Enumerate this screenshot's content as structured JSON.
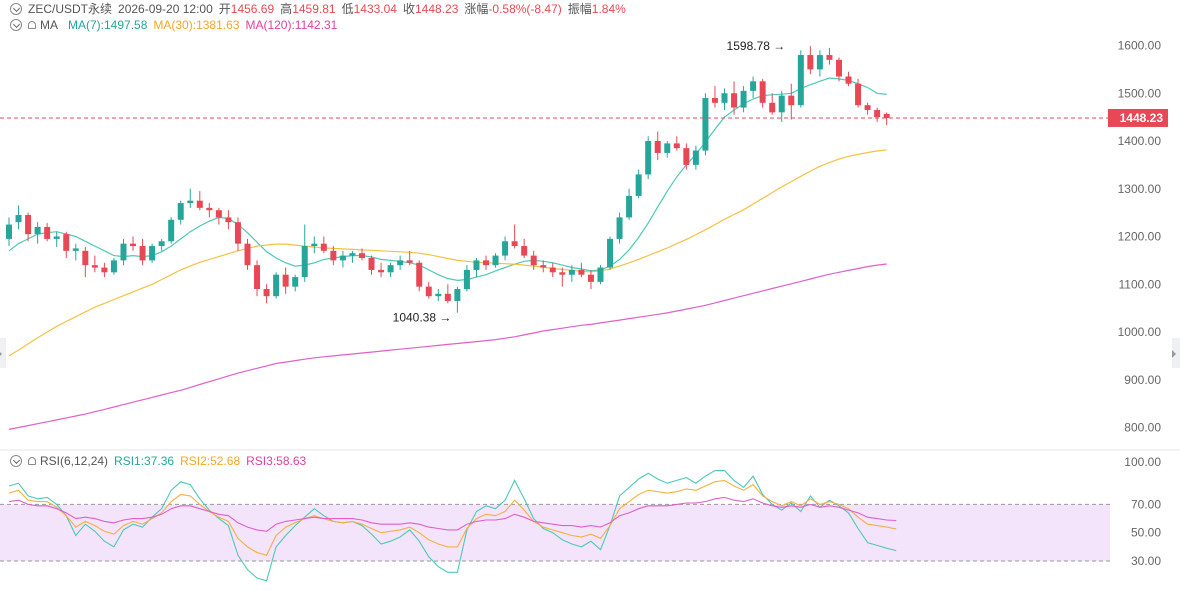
{
  "header": {
    "symbol": "ZEC/USDT永续",
    "time": "2026-09-20 12:00",
    "open_label": "开",
    "open": "1456.69",
    "high_label": "高",
    "high": "1459.81",
    "low_label": "低",
    "low": "1433.04",
    "close_label": "收",
    "close": "1448.23",
    "change_label": "涨幅",
    "change": "-0.58%(-8.47)",
    "amplitude_label": "振幅",
    "amplitude": "1.84%"
  },
  "ma_legend": {
    "name": "MA",
    "ma7": "MA(7):1497.58",
    "ma30": "MA(30):1381.63",
    "ma120": "MA(120):1142.31"
  },
  "rsi_legend": {
    "name": "RSI(6,12,24)",
    "rsi1": "RSI1:37.36",
    "rsi2": "RSI2:52.68",
    "rsi3": "RSI3:58.63"
  },
  "colors": {
    "up": "#26a69a",
    "down": "#e84855",
    "ma7": "#4cc9b8",
    "ma30": "#f5c142",
    "ma120": "#e060c8",
    "rsi1": "#4cc9b8",
    "rsi2": "#f5b042",
    "rsi3": "#e060c8",
    "rsi_band": "#f3e3fb",
    "price_tag": "#e84855"
  },
  "chart_data": [
    {
      "type": "candlestick",
      "ylim": [
        780,
        1650
      ],
      "y_ticks": [
        "1600.00",
        "1500.00",
        "1400.00",
        "1300.00",
        "1200.00",
        "1100.00",
        "1000.00",
        "900.00",
        "800.00"
      ],
      "y_tick_values": [
        1600,
        1500,
        1400,
        1300,
        1200,
        1100,
        1000,
        900,
        800
      ],
      "last_price": 1448.23,
      "last_price_label": "1448.23",
      "annotations": [
        {
          "label": "1598.78",
          "value": 1598.78,
          "index": 82,
          "side": "left"
        },
        {
          "label": "1040.38",
          "value": 1040.38,
          "index": 47,
          "side": "left"
        }
      ],
      "candles": [
        [
          1195,
          1240,
          1180,
          1225
        ],
        [
          1230,
          1265,
          1215,
          1245
        ],
        [
          1245,
          1250,
          1190,
          1205
        ],
        [
          1205,
          1230,
          1185,
          1220
        ],
        [
          1220,
          1228,
          1190,
          1195
        ],
        [
          1195,
          1210,
          1178,
          1200
        ],
        [
          1205,
          1210,
          1155,
          1170
        ],
        [
          1170,
          1185,
          1150,
          1175
        ],
        [
          1170,
          1178,
          1115,
          1140
        ],
        [
          1140,
          1160,
          1125,
          1135
        ],
        [
          1135,
          1145,
          1115,
          1125
        ],
        [
          1125,
          1155,
          1120,
          1150
        ],
        [
          1150,
          1195,
          1140,
          1185
        ],
        [
          1185,
          1200,
          1170,
          1180
        ],
        [
          1180,
          1195,
          1140,
          1150
        ],
        [
          1150,
          1185,
          1145,
          1180
        ],
        [
          1180,
          1195,
          1170,
          1190
        ],
        [
          1190,
          1240,
          1185,
          1235
        ],
        [
          1235,
          1275,
          1225,
          1270
        ],
        [
          1270,
          1300,
          1260,
          1275
        ],
        [
          1275,
          1295,
          1255,
          1260
        ],
        [
          1260,
          1270,
          1240,
          1255
        ],
        [
          1255,
          1260,
          1225,
          1240
        ],
        [
          1240,
          1255,
          1215,
          1230
        ],
        [
          1230,
          1240,
          1170,
          1185
        ],
        [
          1185,
          1195,
          1130,
          1140
        ],
        [
          1140,
          1150,
          1075,
          1090
        ],
        [
          1090,
          1100,
          1060,
          1075
        ],
        [
          1075,
          1125,
          1070,
          1120
        ],
        [
          1120,
          1135,
          1080,
          1095
        ],
        [
          1095,
          1120,
          1085,
          1115
        ],
        [
          1115,
          1225,
          1105,
          1180
        ],
        [
          1180,
          1200,
          1165,
          1185
        ],
        [
          1185,
          1200,
          1165,
          1170
        ],
        [
          1170,
          1180,
          1140,
          1150
        ],
        [
          1150,
          1170,
          1135,
          1160
        ],
        [
          1160,
          1170,
          1145,
          1165
        ],
        [
          1165,
          1175,
          1150,
          1155
        ],
        [
          1155,
          1160,
          1120,
          1130
        ],
        [
          1130,
          1145,
          1115,
          1125
        ],
        [
          1125,
          1145,
          1115,
          1140
        ],
        [
          1140,
          1160,
          1130,
          1150
        ],
        [
          1150,
          1170,
          1140,
          1145
        ],
        [
          1145,
          1150,
          1085,
          1095
        ],
        [
          1095,
          1105,
          1070,
          1075
        ],
        [
          1075,
          1090,
          1065,
          1080
        ],
        [
          1080,
          1100,
          1060,
          1065
        ],
        [
          1065,
          1095,
          1040.38,
          1090
        ],
        [
          1090,
          1140,
          1085,
          1130
        ],
        [
          1130,
          1155,
          1115,
          1150
        ],
        [
          1150,
          1160,
          1130,
          1140
        ],
        [
          1140,
          1165,
          1135,
          1160
        ],
        [
          1160,
          1200,
          1150,
          1190
        ],
        [
          1190,
          1225,
          1175,
          1180
        ],
        [
          1180,
          1195,
          1155,
          1160
        ],
        [
          1160,
          1170,
          1130,
          1140
        ],
        [
          1140,
          1150,
          1125,
          1135
        ],
        [
          1135,
          1145,
          1115,
          1125
        ],
        [
          1125,
          1135,
          1095,
          1120
        ],
        [
          1120,
          1140,
          1105,
          1130
        ],
        [
          1130,
          1145,
          1115,
          1120
        ],
        [
          1120,
          1130,
          1090,
          1105
        ],
        [
          1105,
          1140,
          1100,
          1135
        ],
        [
          1135,
          1200,
          1130,
          1195
        ],
        [
          1195,
          1250,
          1185,
          1240
        ],
        [
          1240,
          1300,
          1235,
          1285
        ],
        [
          1285,
          1340,
          1280,
          1330
        ],
        [
          1330,
          1410,
          1320,
          1400
        ],
        [
          1400,
          1420,
          1360,
          1375
        ],
        [
          1375,
          1400,
          1365,
          1395
        ],
        [
          1395,
          1410,
          1380,
          1385
        ],
        [
          1385,
          1395,
          1340,
          1350
        ],
        [
          1350,
          1390,
          1340,
          1380
        ],
        [
          1380,
          1500,
          1370,
          1490
        ],
        [
          1490,
          1515,
          1470,
          1480
        ],
        [
          1480,
          1510,
          1465,
          1500
        ],
        [
          1500,
          1525,
          1455,
          1470
        ],
        [
          1470,
          1515,
          1460,
          1505
        ],
        [
          1505,
          1535,
          1490,
          1525
        ],
        [
          1525,
          1530,
          1470,
          1480
        ],
        [
          1480,
          1500,
          1455,
          1460
        ],
        [
          1460,
          1505,
          1440,
          1495
        ],
        [
          1495,
          1520,
          1445,
          1475
        ],
        [
          1475,
          1590,
          1470,
          1580
        ],
        [
          1580,
          1598.78,
          1540,
          1550
        ],
        [
          1550,
          1590,
          1535,
          1580
        ],
        [
          1580,
          1595,
          1560,
          1570
        ],
        [
          1570,
          1575,
          1525,
          1535
        ],
        [
          1535,
          1545,
          1515,
          1520
        ],
        [
          1520,
          1530,
          1470,
          1475
        ],
        [
          1475,
          1480,
          1455,
          1465
        ],
        [
          1465,
          1470,
          1440,
          1450
        ],
        [
          1456.69,
          1459.81,
          1433.04,
          1448.23
        ]
      ],
      "series": [
        {
          "name": "MA(7)",
          "values": [
            1170,
            1185,
            1195,
            1205,
            1208,
            1210,
            1205,
            1200,
            1190,
            1180,
            1170,
            1160,
            1158,
            1160,
            1158,
            1160,
            1168,
            1180,
            1195,
            1210,
            1222,
            1232,
            1240,
            1238,
            1225,
            1208,
            1188,
            1168,
            1155,
            1145,
            1138,
            1140,
            1145,
            1152,
            1155,
            1158,
            1160,
            1160,
            1157,
            1152,
            1150,
            1148,
            1145,
            1140,
            1130,
            1120,
            1112,
            1108,
            1110,
            1115,
            1120,
            1128,
            1135,
            1142,
            1148,
            1150,
            1148,
            1145,
            1140,
            1135,
            1132,
            1128,
            1130,
            1138,
            1152,
            1172,
            1198,
            1228,
            1262,
            1295,
            1325,
            1350,
            1372,
            1398,
            1425,
            1450,
            1465,
            1478,
            1488,
            1495,
            1497,
            1498,
            1500,
            1510,
            1518,
            1525,
            1532,
            1530,
            1527,
            1520,
            1512,
            1500,
            1497.58
          ]
        },
        {
          "name": "MA(30)",
          "values": [
            950,
            962,
            975,
            988,
            1000,
            1012,
            1022,
            1032,
            1042,
            1052,
            1060,
            1068,
            1076,
            1084,
            1092,
            1100,
            1110,
            1120,
            1130,
            1138,
            1146,
            1152,
            1158,
            1164,
            1170,
            1175,
            1180,
            1182,
            1184,
            1184,
            1182,
            1180,
            1178,
            1176,
            1175,
            1174,
            1173,
            1172,
            1171,
            1170,
            1169,
            1168,
            1167,
            1165,
            1162,
            1158,
            1154,
            1150,
            1148,
            1146,
            1145,
            1144,
            1143,
            1142,
            1140,
            1138,
            1136,
            1133,
            1131,
            1129,
            1127,
            1126,
            1128,
            1132,
            1138,
            1145,
            1152,
            1160,
            1168,
            1176,
            1185,
            1194,
            1204,
            1214,
            1225,
            1236,
            1246,
            1256,
            1268,
            1280,
            1292,
            1304,
            1315,
            1326,
            1337,
            1347,
            1355,
            1362,
            1368,
            1372,
            1376,
            1379,
            1381.63
          ]
        },
        {
          "name": "MA(120)",
          "values": [
            796,
            800,
            804,
            808,
            812,
            816,
            820,
            824,
            828,
            833,
            838,
            843,
            848,
            853,
            858,
            863,
            868,
            873,
            878,
            884,
            890,
            896,
            902,
            908,
            914,
            919,
            924,
            929,
            934,
            937,
            940,
            943,
            946,
            948,
            950,
            952,
            954,
            956,
            958,
            960,
            962,
            964,
            966,
            968,
            970,
            972,
            974,
            976,
            978,
            980,
            982,
            984,
            987,
            990,
            994,
            998,
            1002,
            1005,
            1008,
            1011,
            1014,
            1016,
            1019,
            1022,
            1025,
            1028,
            1031,
            1034,
            1037,
            1040,
            1044,
            1048,
            1052,
            1056,
            1061,
            1066,
            1071,
            1076,
            1081,
            1086,
            1091,
            1096,
            1101,
            1106,
            1111,
            1116,
            1121,
            1125,
            1129,
            1133,
            1137,
            1140,
            1142.31
          ]
        }
      ]
    },
    {
      "type": "line",
      "ylim": [
        20,
        100
      ],
      "y_ticks": [
        "100.00",
        "70.00",
        "50.00",
        "30.00"
      ],
      "y_tick_values": [
        100,
        70,
        50,
        30
      ],
      "band": [
        30,
        70
      ],
      "series": [
        {
          "name": "RSI1",
          "values": [
            83,
            85,
            76,
            74,
            75,
            70,
            62,
            48,
            56,
            51,
            44,
            40,
            52,
            56,
            54,
            61,
            67,
            80,
            86,
            84,
            74,
            66,
            60,
            55,
            34,
            24,
            18,
            16,
            40,
            48,
            55,
            61,
            67,
            62,
            58,
            57,
            58,
            55,
            49,
            42,
            44,
            47,
            52,
            44,
            33,
            26,
            22,
            22,
            52,
            65,
            69,
            67,
            73,
            87,
            74,
            60,
            53,
            50,
            45,
            42,
            40,
            44,
            38,
            55,
            76,
            82,
            88,
            92,
            88,
            85,
            87,
            89,
            85,
            90,
            94,
            94,
            87,
            82,
            90,
            77,
            70,
            66,
            71,
            65,
            76,
            68,
            73,
            69,
            64,
            53,
            43,
            41,
            39,
            37.36
          ]
        },
        {
          "name": "RSI2",
          "values": [
            78,
            80,
            73,
            72,
            72,
            68,
            62,
            54,
            58,
            55,
            51,
            49,
            55,
            58,
            56,
            60,
            64,
            72,
            77,
            76,
            70,
            65,
            61,
            58,
            46,
            40,
            36,
            34,
            48,
            54,
            57,
            60,
            62,
            60,
            58,
            57,
            58,
            56,
            53,
            50,
            51,
            52,
            54,
            50,
            45,
            42,
            40,
            40,
            53,
            60,
            63,
            62,
            65,
            73,
            66,
            58,
            54,
            52,
            50,
            48,
            47,
            49,
            46,
            55,
            67,
            72,
            77,
            80,
            79,
            78,
            79,
            81,
            80,
            83,
            86,
            87,
            83,
            80,
            84,
            76,
            72,
            69,
            72,
            69,
            74,
            70,
            72,
            70,
            67,
            61,
            56,
            55,
            54,
            52.68
          ]
        },
        {
          "name": "RSI3",
          "values": [
            72,
            73,
            70,
            69,
            69,
            67,
            64,
            60,
            61,
            60,
            58,
            57,
            59,
            60,
            60,
            61,
            63,
            67,
            69,
            69,
            67,
            65,
            63,
            62,
            57,
            54,
            52,
            51,
            56,
            58,
            59,
            60,
            61,
            60,
            60,
            60,
            60,
            59,
            57,
            56,
            56,
            56,
            57,
            56,
            54,
            53,
            52,
            52,
            56,
            58,
            59,
            59,
            60,
            63,
            61,
            58,
            57,
            56,
            55,
            55,
            54,
            55,
            54,
            57,
            62,
            64,
            67,
            69,
            69,
            69,
            70,
            71,
            71,
            72,
            74,
            75,
            73,
            72,
            74,
            71,
            69,
            68,
            69,
            68,
            70,
            68,
            69,
            68,
            66,
            64,
            61,
            60,
            59,
            58.63
          ]
        }
      ]
    }
  ]
}
